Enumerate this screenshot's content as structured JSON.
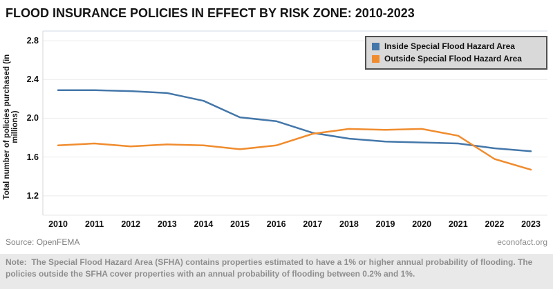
{
  "title": "FLOOD INSURANCE POLICIES IN EFFECT BY RISK ZONE: 2010-2023",
  "legend": {
    "items": [
      {
        "label": "Inside Special Flood Hazard Area",
        "color": "#4477a9"
      },
      {
        "label": "Outside Special Flood Hazard Area",
        "color": "#f08c2e"
      }
    ]
  },
  "chart_data": {
    "type": "line",
    "title": "FLOOD INSURANCE POLICIES IN EFFECT BY RISK ZONE: 2010-2023",
    "x": [
      2010,
      2011,
      2012,
      2013,
      2014,
      2015,
      2016,
      2017,
      2018,
      2019,
      2020,
      2021,
      2022,
      2023
    ],
    "series": [
      {
        "name": "Inside Special Flood Hazard Area",
        "color": "#4477a9",
        "values": [
          2.29,
          2.29,
          2.28,
          2.26,
          2.18,
          2.01,
          1.97,
          1.85,
          1.79,
          1.76,
          1.75,
          1.74,
          1.69,
          1.66
        ]
      },
      {
        "name": "Outside Special Flood Hazard Area",
        "color": "#f08c2e",
        "values": [
          1.72,
          1.74,
          1.71,
          1.73,
          1.72,
          1.68,
          1.72,
          1.84,
          1.89,
          1.88,
          1.89,
          1.82,
          1.58,
          1.47
        ]
      }
    ],
    "xlabel": "",
    "ylabel": "Total number of policies purchased (in millions)",
    "yticks": [
      "2.8",
      "2.4",
      "2.0",
      "1.6",
      "1.2"
    ],
    "ylim": [
      1.0,
      2.9
    ],
    "grid": true,
    "legend_position": "top-right"
  },
  "footer": {
    "source": "Source: OpenFEMA",
    "site": "econofact.org"
  },
  "note": "Note:  The Special Flood Hazard Area (SFHA) contains properties estimated to have a 1% or higher annual probability of flooding. The policies outside the SFHA cover properties with an annual probability of flooding between 0.2% and 1%."
}
